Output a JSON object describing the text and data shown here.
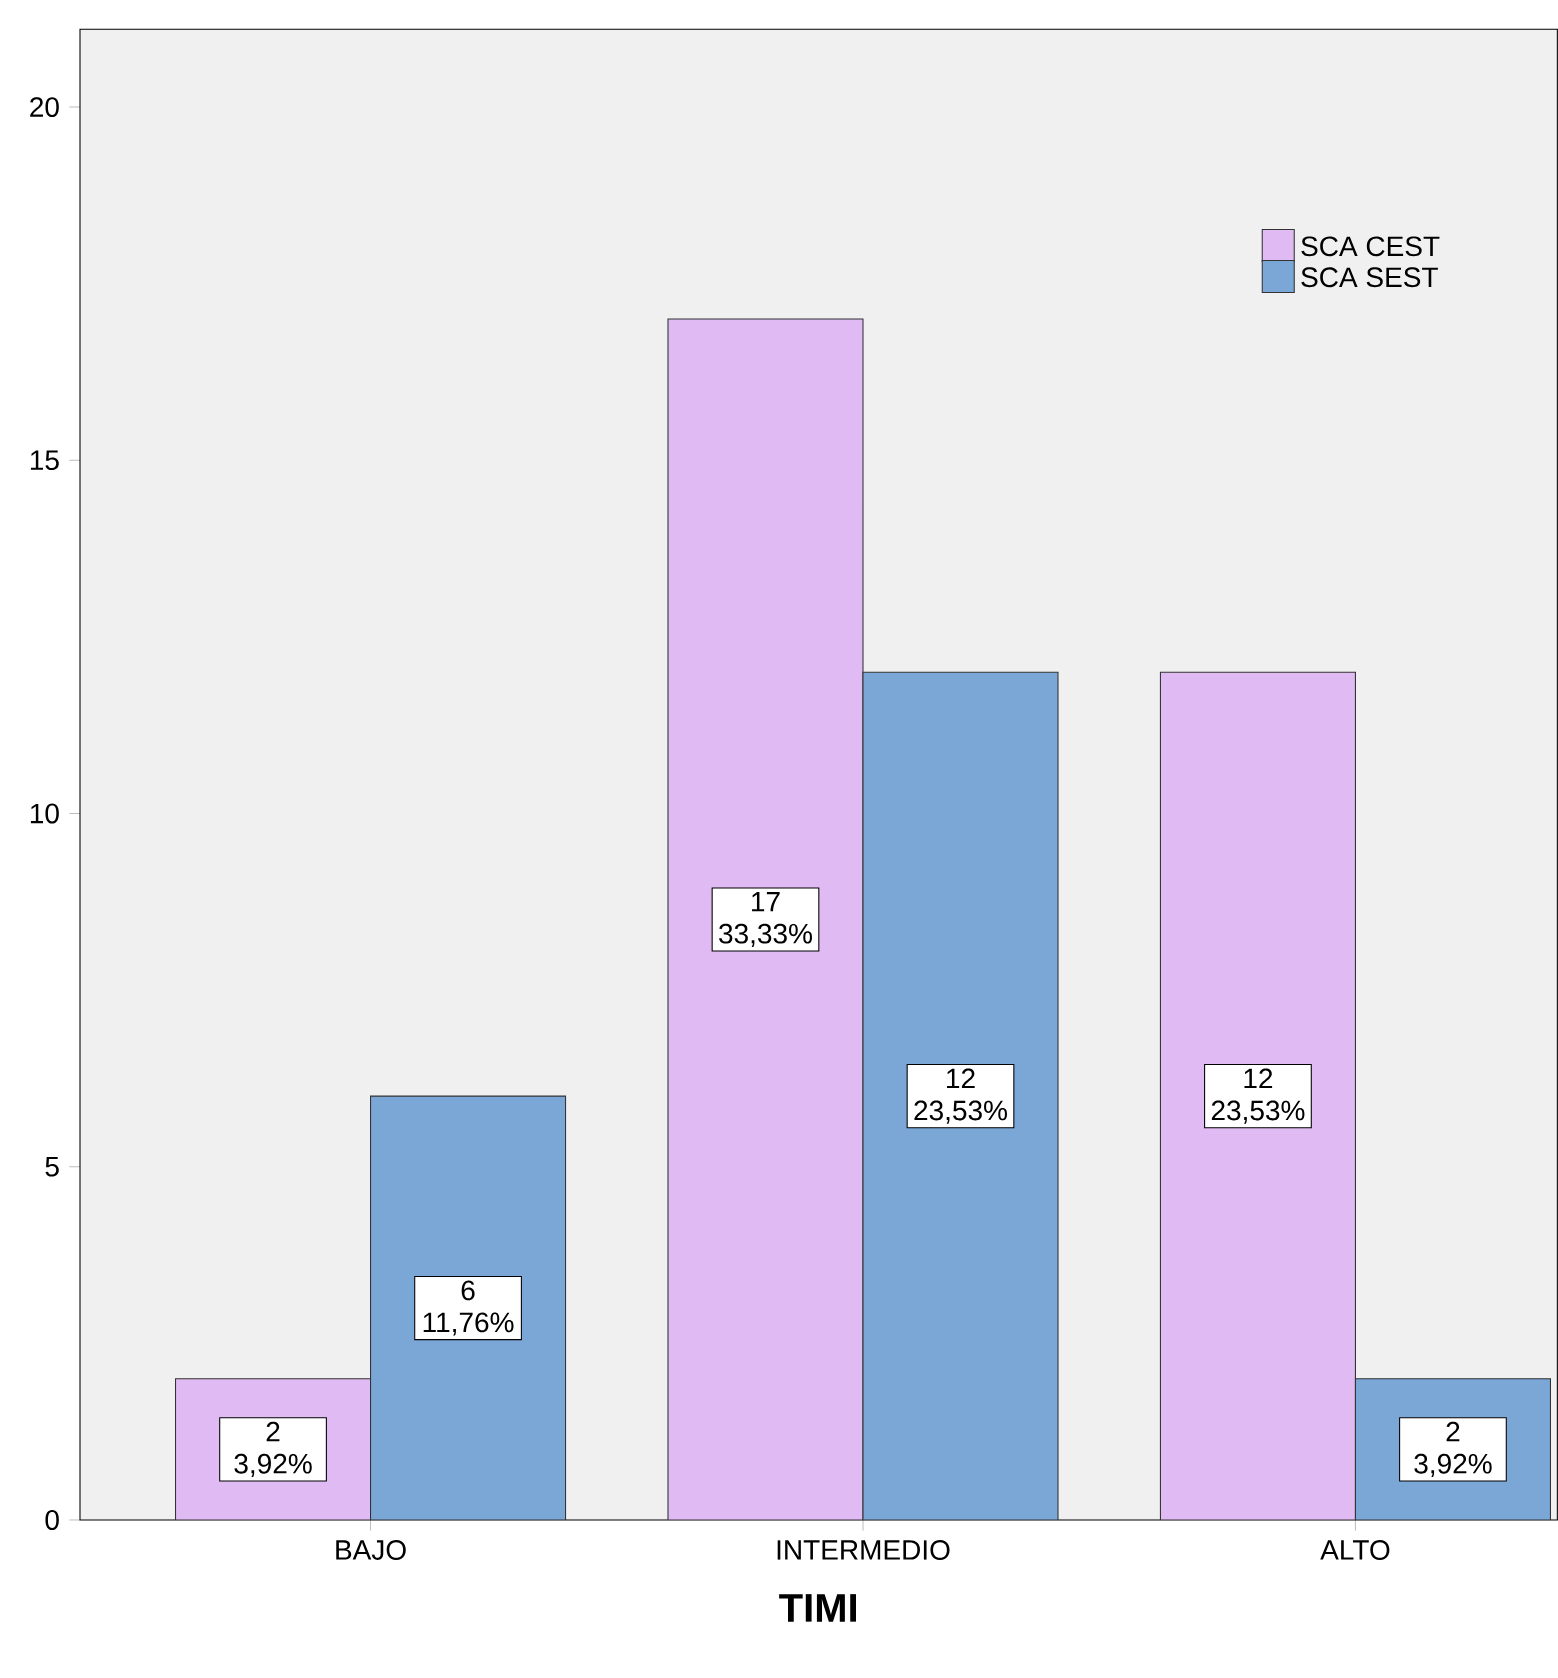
{
  "chart_data": {
    "type": "bar",
    "xlabel": "TIMI",
    "categories": [
      "BAJO",
      "INTERMEDIO",
      "ALTO"
    ],
    "series": [
      {
        "name": "SCA CEST",
        "color": "#e0baf2",
        "values": [
          2,
          17,
          12
        ],
        "value_labels": [
          "2 3,92%",
          "17 33,33%",
          "12 23,53%"
        ]
      },
      {
        "name": "SCA SEST",
        "color": "#7ba7d7",
        "values": [
          6,
          12,
          2
        ],
        "value_labels": [
          "6 11,76%",
          "12 23,53%",
          "2 3,92%"
        ]
      }
    ],
    "ylim": [
      0,
      21.1
    ],
    "yticks": [
      0,
      5,
      10,
      15,
      20
    ],
    "legend": "top right"
  }
}
